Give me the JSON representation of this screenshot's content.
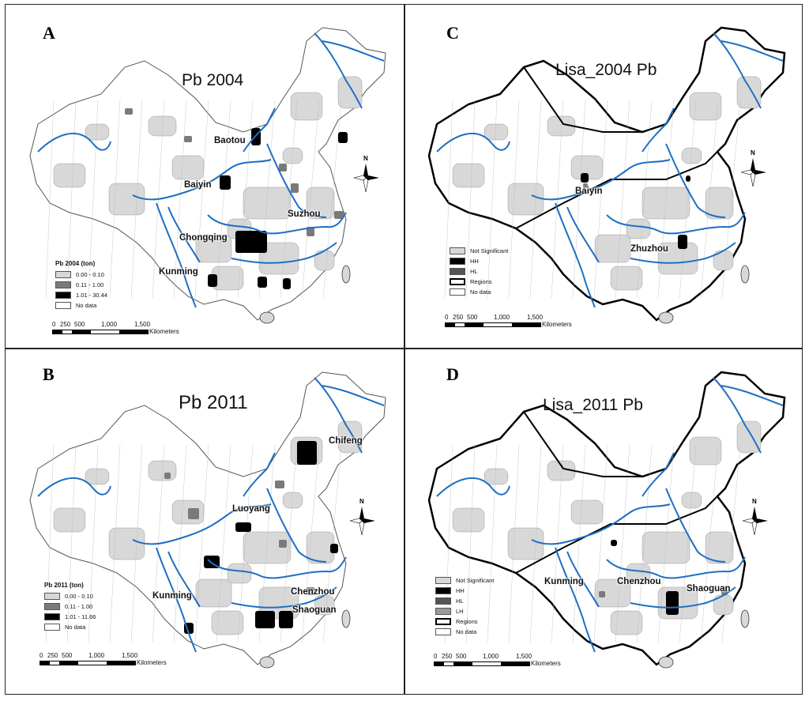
{
  "panels": [
    {
      "id": "A",
      "title": "Pb 2004",
      "cities": [
        "Baotou",
        "Baiyin",
        "Suzhou",
        "Chongqing",
        "Kunming"
      ],
      "legend": {
        "title": "Pb 2004 (ton)",
        "items": [
          {
            "label": "0.00 - 0.10",
            "color": "#d8d8d8"
          },
          {
            "label": "0.11 - 1.00",
            "color": "#7a7a7a"
          },
          {
            "label": "1.01 - 30.44",
            "color": "#000000"
          },
          {
            "label": "No data",
            "color": "#ffffff"
          }
        ]
      }
    },
    {
      "id": "B",
      "title": "Pb 2011",
      "cities": [
        "Chifeng",
        "Luoyang",
        "Kunming",
        "Chenzhou",
        "Shaoguan"
      ],
      "legend": {
        "title": "Pb 2011 (ton)",
        "items": [
          {
            "label": "0.00 - 0.10",
            "color": "#d8d8d8"
          },
          {
            "label": "0.11 - 1.00",
            "color": "#7a7a7a"
          },
          {
            "label": "1.01 - 11.66",
            "color": "#000000"
          },
          {
            "label": "No data",
            "color": "#ffffff"
          }
        ]
      }
    },
    {
      "id": "C",
      "title": "Lisa_2004 Pb",
      "cities": [
        "Baiyin",
        "Zhuzhou"
      ],
      "legend": {
        "title": "",
        "items": [
          {
            "label": "Not Significant",
            "color": "#d8d8d8"
          },
          {
            "label": "HH",
            "color": "#000000"
          },
          {
            "label": "HL",
            "color": "#555555"
          },
          {
            "label": "Regions",
            "color": "#ffffff",
            "thick": true
          },
          {
            "label": "No data",
            "color": "#ffffff"
          }
        ]
      }
    },
    {
      "id": "D",
      "title": "Lisa_2011 Pb",
      "cities": [
        "Kunming",
        "Chenzhou",
        "Shaoguan"
      ],
      "legend": {
        "title": "",
        "items": [
          {
            "label": "Not Significant",
            "color": "#d8d8d8"
          },
          {
            "label": "HH",
            "color": "#000000"
          },
          {
            "label": "HL",
            "color": "#555555"
          },
          {
            "label": "LH",
            "color": "#9a9a9a"
          },
          {
            "label": "Regions",
            "color": "#ffffff",
            "thick": true
          },
          {
            "label": "No data",
            "color": "#ffffff"
          }
        ]
      }
    }
  ],
  "scale": {
    "ticks": [
      "0",
      "250",
      "500",
      "1,000",
      "1,500"
    ],
    "unit": "Kilometers"
  },
  "north_label": "N",
  "colors": {
    "river": "#1f6fc4",
    "low": "#d8d8d8",
    "mid": "#7a7a7a",
    "high": "#000000",
    "boundary": "#888888"
  }
}
